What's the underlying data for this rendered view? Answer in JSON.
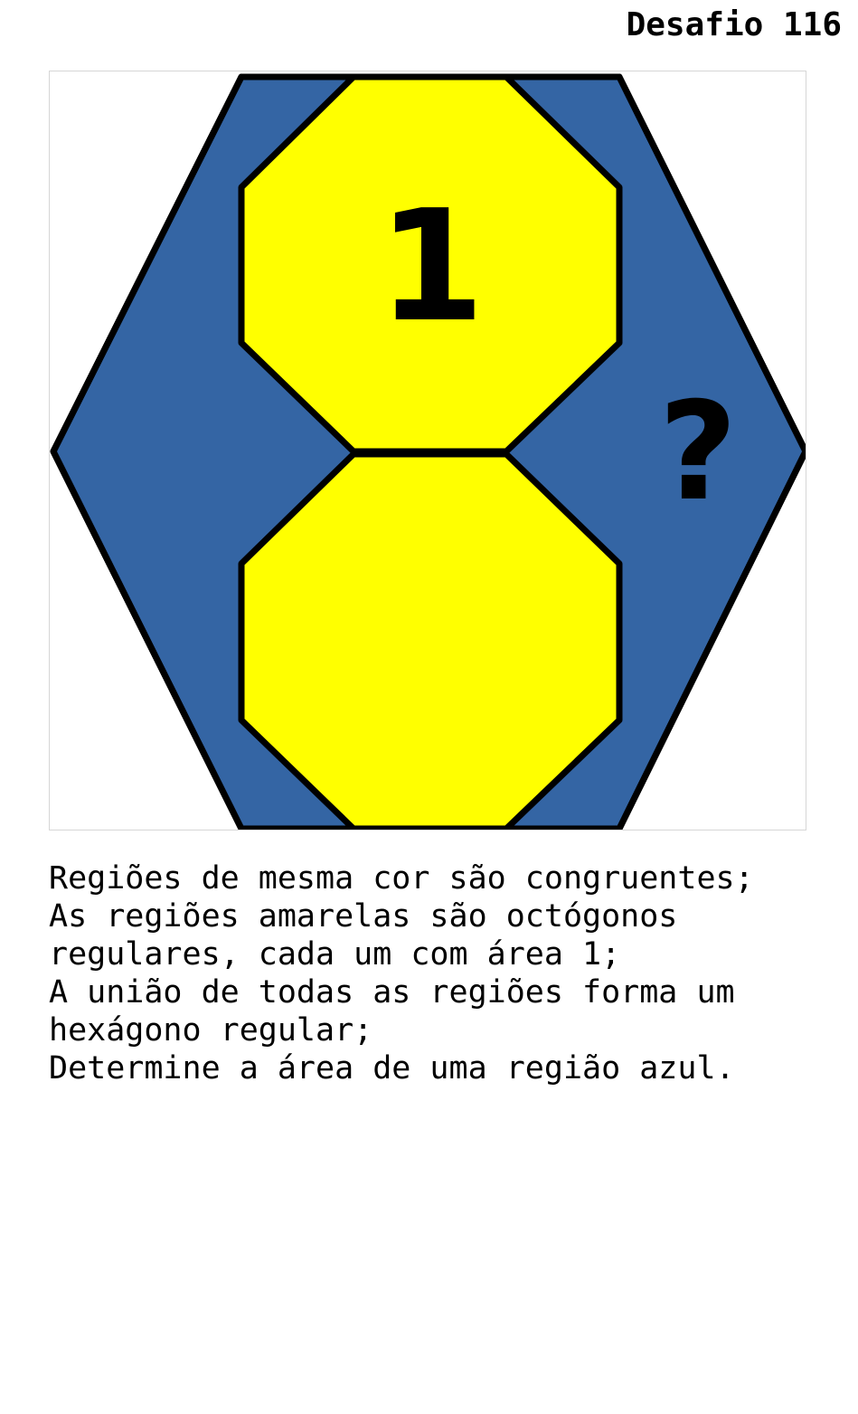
{
  "title": "Desafio 116",
  "figure": {
    "colors": {
      "blue": "#3465a4",
      "yellow": "#ffff00",
      "outline": "#000000"
    },
    "labels": {
      "yellow_area": "1",
      "unknown": "?"
    }
  },
  "statement": [
    "Regiões de mesma cor são congruentes;",
    "As regiões amarelas são octógonos",
    "regulares, cada um com área 1;",
    "A união de todas as regiões forma um",
    "hexágono regular;",
    "Determine a área de uma região azul."
  ]
}
